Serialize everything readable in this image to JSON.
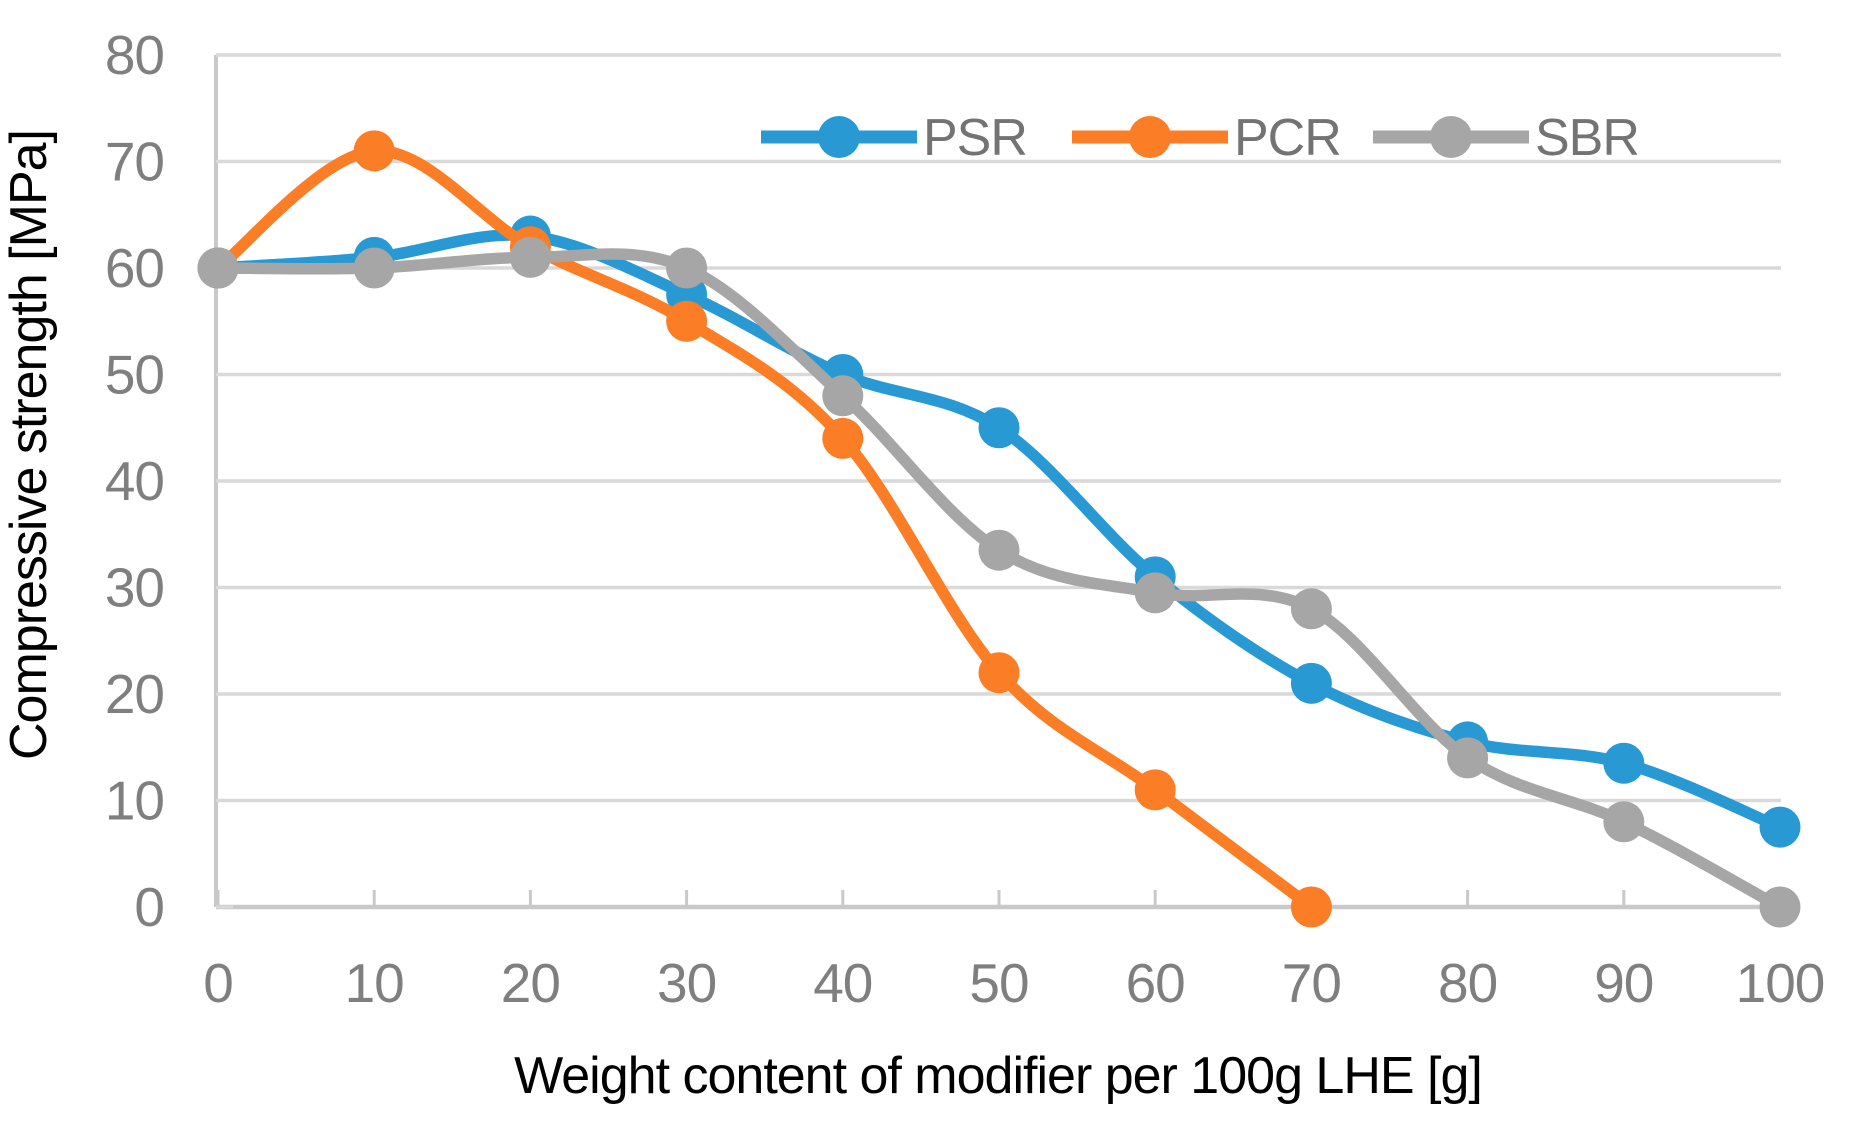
{
  "chart_data": {
    "type": "line",
    "title": "",
    "xlabel": "Weight content of modifier per 100g LHE [g]",
    "ylabel": "Compressive strength [MPa]",
    "xlim": [
      0,
      100
    ],
    "ylim": [
      0,
      80
    ],
    "x_ticks": [
      0,
      10,
      20,
      30,
      40,
      50,
      60,
      70,
      80,
      90,
      100
    ],
    "y_ticks": [
      0,
      10,
      20,
      30,
      40,
      50,
      60,
      70,
      80
    ],
    "grid": "horizontal",
    "smooth_lines": true,
    "legend_position": "top-inside-horizontal",
    "x": [
      0,
      10,
      20,
      30,
      40,
      50,
      60,
      70,
      80,
      90,
      100
    ],
    "series": [
      {
        "name": "PSR",
        "color": "#2899D3",
        "values": [
          60,
          61,
          63,
          57.5,
          50,
          45,
          31,
          21,
          15.5,
          13.5,
          7.5
        ]
      },
      {
        "name": "PCR",
        "color": "#FB7D26",
        "values": [
          60,
          71,
          62,
          55,
          44,
          22,
          11,
          0
        ]
      },
      {
        "name": "SBR",
        "color": "#A6A6A6",
        "values": [
          60,
          60,
          61,
          60,
          48,
          33.5,
          29.5,
          28,
          14,
          8,
          0
        ]
      }
    ],
    "style_colors": {
      "gridline": "#D9D9D9",
      "axis_line": "#C9C9C9",
      "tick_label": "#7F7F7F",
      "legend_label": "#737373",
      "axis_title": "#000000",
      "background": "#FFFFFF"
    }
  }
}
